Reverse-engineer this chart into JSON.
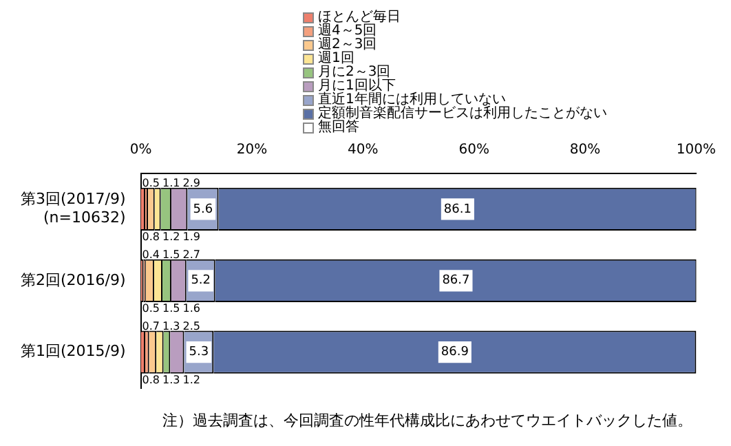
{
  "chart_data": {
    "type": "bar",
    "orientation": "horizontal",
    "stacked": true,
    "legend": "top",
    "data_labels": true,
    "grid": false,
    "categories": [
      "第3回(2017/9) (n=10632)",
      "第2回(2016/9)",
      "第1回(2015/9)"
    ],
    "xlim": [
      0,
      100
    ],
    "xticks": [
      {
        "value": 0,
        "label": "0%"
      },
      {
        "value": 20,
        "label": "20%"
      },
      {
        "value": 40,
        "label": "40%"
      },
      {
        "value": 60,
        "label": "60%"
      },
      {
        "value": 80,
        "label": "80%"
      },
      {
        "value": 100,
        "label": "100%"
      }
    ],
    "series": [
      {
        "name": "ほとんど毎日",
        "color": "#ee7f6c",
        "values": [
          0.8,
          0.5,
          0.8
        ]
      },
      {
        "name": "週4～5回",
        "color": "#f4a07e",
        "values": [
          0.5,
          0.4,
          0.7
        ]
      },
      {
        "name": "週2～3回",
        "color": "#fbc98e",
        "values": [
          1.2,
          1.5,
          1.3
        ]
      },
      {
        "name": "週1回",
        "color": "#fde594",
        "values": [
          1.1,
          1.5,
          1.3
        ]
      },
      {
        "name": "月に2～3回",
        "color": "#97c47f",
        "values": [
          1.9,
          1.6,
          1.2
        ]
      },
      {
        "name": "月に1回以下",
        "color": "#b99dbf",
        "values": [
          2.9,
          2.7,
          2.5
        ]
      },
      {
        "name": "直近1年間には利用していない",
        "color": "#98a5cb",
        "values": [
          5.6,
          5.2,
          5.3
        ]
      },
      {
        "name": "定額制音楽配信サービスは利用したことがない",
        "color": "#5a70a5",
        "values": [
          86.1,
          86.7,
          86.9
        ]
      },
      {
        "name": "無回答",
        "color": "#ffffff",
        "values": [
          null,
          null,
          null
        ]
      }
    ],
    "annotations": [
      "注）過去調査は、今回調査の性年代構成比にあわせてウエイトバックした値。"
    ]
  }
}
